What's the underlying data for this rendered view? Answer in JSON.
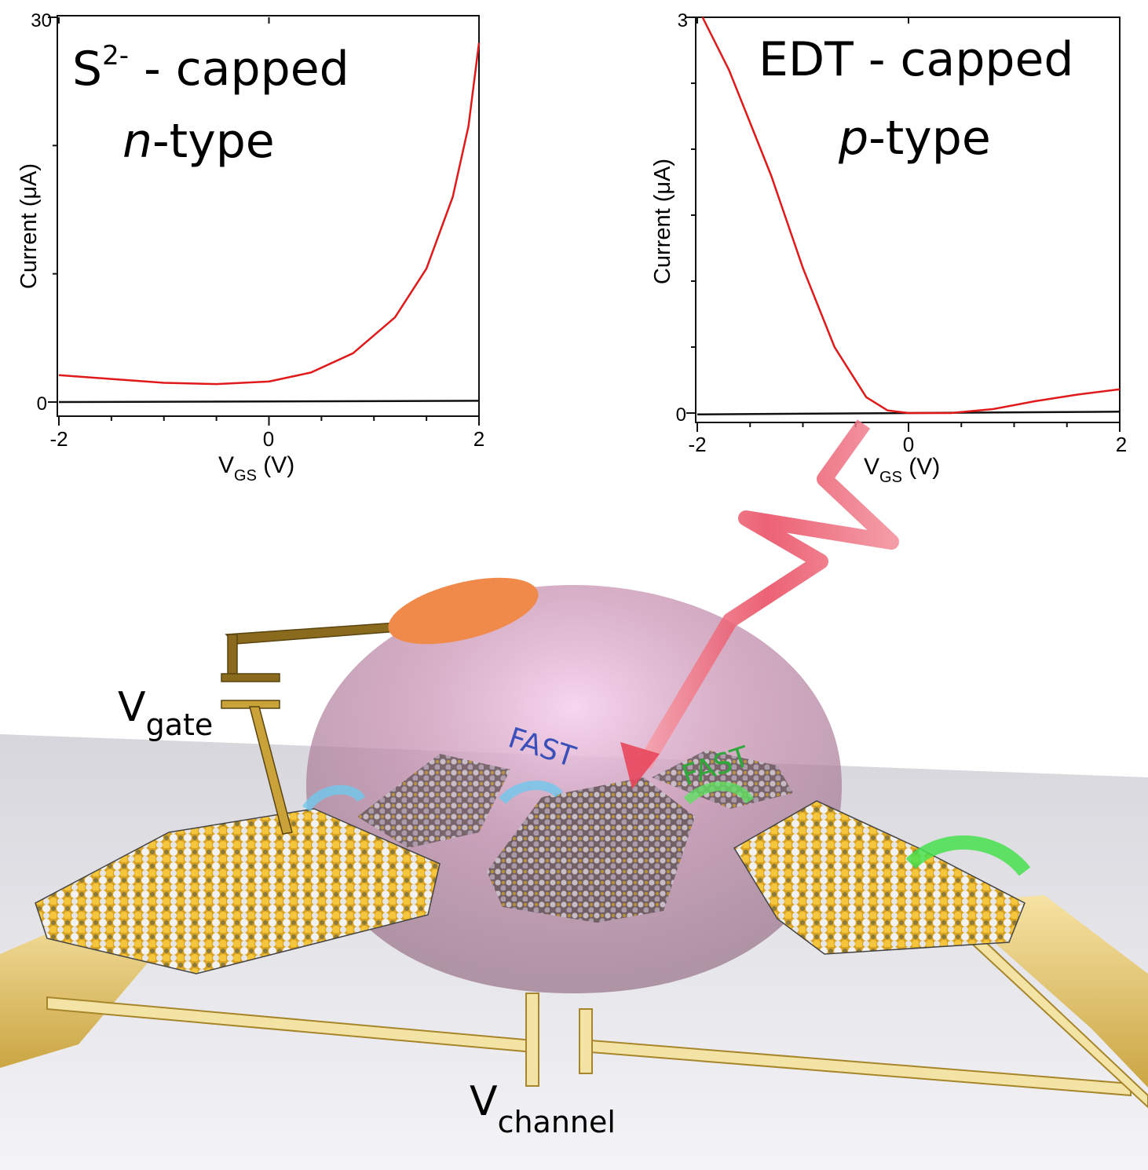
{
  "chart_data": [
    {
      "type": "line",
      "title_line1_main": "S",
      "title_line1_sup": "2-",
      "title_line1_rest": " - capped",
      "title_line2_italic": "n",
      "title_line2_rest": "-type",
      "xlabel_main": "V",
      "xlabel_sub": "GS",
      "xlabel_unit": " (V)",
      "ylabel": "Current (μA)",
      "xlim": [
        -2,
        2
      ],
      "ylim": [
        0,
        30
      ],
      "x_tick_labels": [
        "-2",
        "0",
        "2"
      ],
      "y_tick_labels": [
        "0",
        "30"
      ],
      "series": [
        {
          "name": "red",
          "color": "#e01a1a",
          "points": [
            [
              -2,
              2.1
            ],
            [
              -1.5,
              1.8
            ],
            [
              -1,
              1.5
            ],
            [
              -0.5,
              1.4
            ],
            [
              0,
              1.6
            ],
            [
              0.4,
              2.3
            ],
            [
              0.8,
              3.8
            ],
            [
              1.2,
              6.6
            ],
            [
              1.5,
              10.4
            ],
            [
              1.75,
              16.0
            ],
            [
              1.9,
              21.5
            ],
            [
              2.0,
              28.0
            ]
          ]
        },
        {
          "name": "black",
          "color": "#111111",
          "points": [
            [
              -2,
              0.0
            ],
            [
              0,
              0.05
            ],
            [
              2,
              0.1
            ]
          ]
        }
      ]
    },
    {
      "type": "line",
      "title_line1": "EDT - capped",
      "title_line2_italic": "p",
      "title_line2_rest": "-type",
      "xlabel_main": "V",
      "xlabel_sub": "GS",
      "xlabel_unit": " (V)",
      "ylabel": "Current (μA)",
      "xlim": [
        -2,
        2
      ],
      "ylim": [
        0,
        3
      ],
      "x_tick_labels": [
        "-2",
        "0",
        "2"
      ],
      "y_tick_labels": [
        "0",
        "3"
      ],
      "series": [
        {
          "name": "red",
          "color": "#e01a1a",
          "points": [
            [
              -1.95,
              3.0
            ],
            [
              -1.7,
              2.6
            ],
            [
              -1.5,
              2.2
            ],
            [
              -1.3,
              1.8
            ],
            [
              -1.0,
              1.1
            ],
            [
              -0.7,
              0.5
            ],
            [
              -0.4,
              0.12
            ],
            [
              -0.2,
              0.02
            ],
            [
              0,
              0.0
            ],
            [
              0.4,
              0.0
            ],
            [
              0.8,
              0.03
            ],
            [
              1.2,
              0.09
            ],
            [
              1.6,
              0.14
            ],
            [
              2.0,
              0.18
            ]
          ]
        },
        {
          "name": "black",
          "color": "#111111",
          "points": [
            [
              -2,
              -0.01
            ],
            [
              0,
              0.0
            ],
            [
              2,
              0.01
            ]
          ]
        }
      ]
    }
  ],
  "diagram": {
    "gate_label_main": "V",
    "gate_label_sub": "gate",
    "channel_label_main": "V",
    "channel_label_sub": "channel",
    "fast_label_left": "FAST",
    "fast_label_right": "FAST",
    "colors": {
      "gold": "#e8c23a",
      "electrolyte": "#c98aa8",
      "electrode_pad": "#f08a4b",
      "light_beam": "#f05a6e",
      "fast_blue": "#3a4fb8",
      "fast_green": "#2ea83a"
    }
  }
}
